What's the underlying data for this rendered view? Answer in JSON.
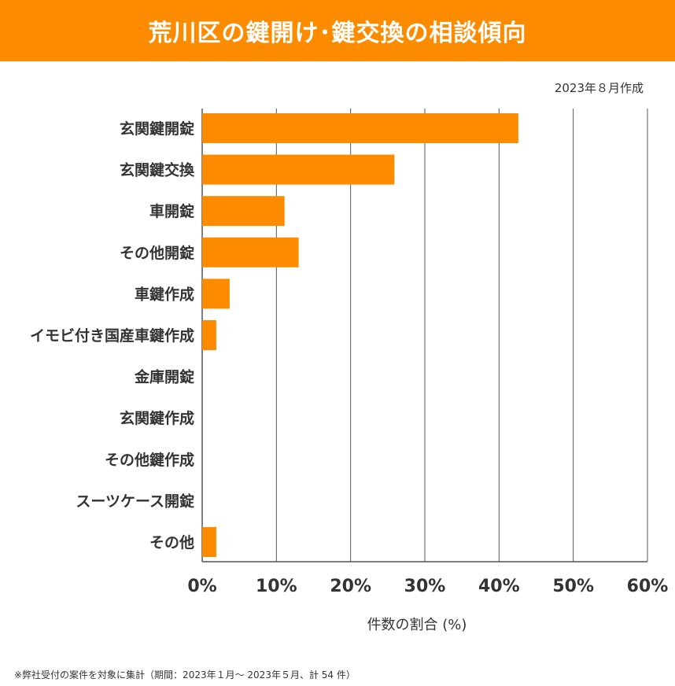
{
  "header": {
    "title": "荒川区の鍵開け･鍵交換の相談傾向"
  },
  "date_note": "2023年８月作成",
  "footnote": "※弊社受付の案件を対象に集計（期間：2023年１月～ 2023年５月、計 54 件）",
  "colors": {
    "header_bg": "#FD8B00",
    "bar": "#FD8B00",
    "grid": "#555555",
    "text": "#333333"
  },
  "chart_data": {
    "type": "bar",
    "orientation": "horizontal",
    "title": "荒川区の鍵開け･鍵交換の相談傾向",
    "xlabel": "件数の割合 (%)",
    "ylabel": "",
    "xlim": [
      0,
      60
    ],
    "xticks": [
      0,
      10,
      20,
      30,
      40,
      50,
      60
    ],
    "xtick_labels": [
      "0%",
      "10%",
      "20%",
      "30%",
      "40%",
      "50%",
      "60%"
    ],
    "grid": true,
    "categories": [
      "玄関鍵開錠",
      "玄関鍵交換",
      "車開錠",
      "その他開錠",
      "車鍵作成",
      "イモビ付き国産車鍵作成",
      "金庫開錠",
      "玄関鍵作成",
      "その他鍵作成",
      "スーツケース開錠",
      "その他"
    ],
    "values": [
      42.6,
      25.9,
      11.1,
      13.0,
      3.7,
      1.9,
      0,
      0,
      0,
      0,
      1.9
    ]
  }
}
